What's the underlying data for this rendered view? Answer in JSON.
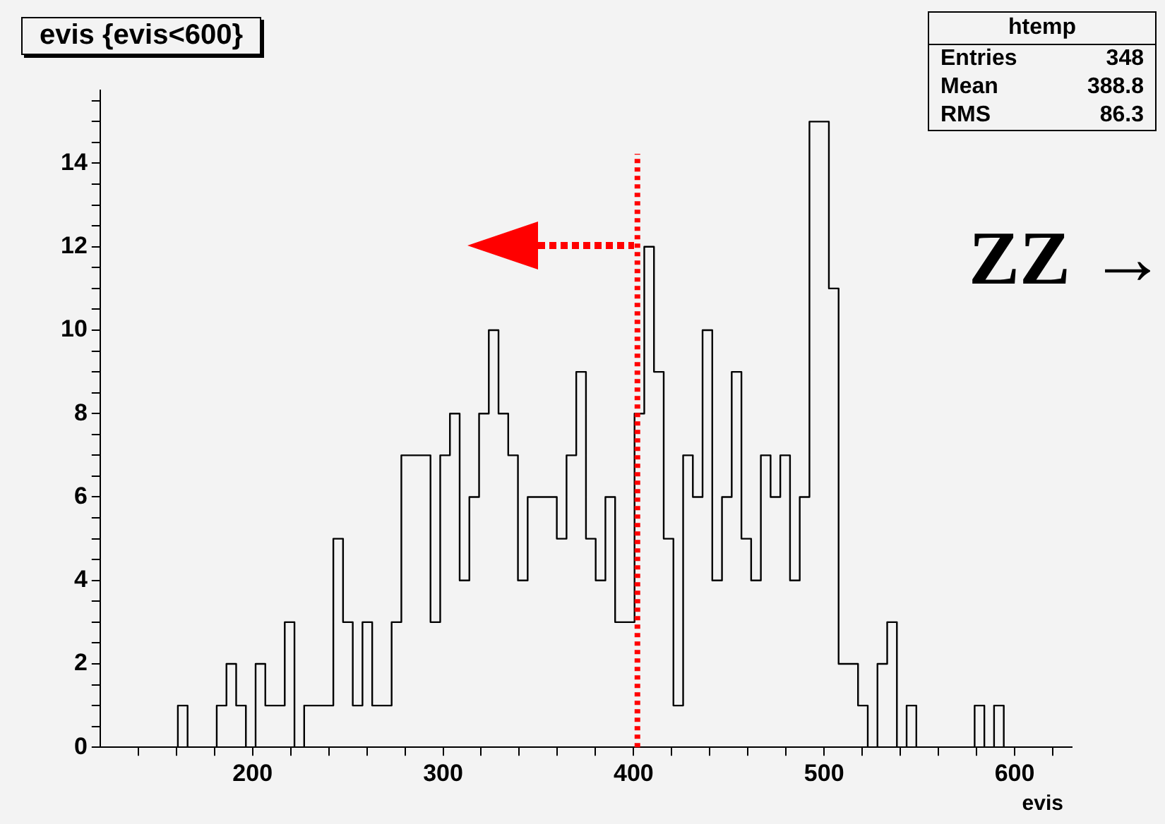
{
  "chart_data": {
    "type": "histogram",
    "title": "evis {evis<600}",
    "xlabel": "evis",
    "bins": [
      120,
      125.1,
      130.2,
      135.3,
      140.4,
      145.5,
      150.6,
      155.7,
      160.8,
      165.9,
      171,
      176.1,
      181.2,
      186.3,
      191.4,
      196.5,
      201.6,
      206.7,
      211.8,
      216.9,
      222,
      227.1,
      232.2,
      237.3,
      242.4,
      247.5,
      252.6,
      257.7,
      262.8,
      267.9,
      273,
      278.1,
      283.2,
      288.3,
      293.4,
      298.5,
      303.6,
      308.7,
      313.8,
      318.9,
      324,
      329.1,
      334.2,
      339.3,
      344.4,
      349.5,
      354.6,
      359.7,
      364.8,
      369.9,
      375,
      380.1,
      385.2,
      390.3,
      395.4,
      400.5,
      405.6,
      410.7,
      415.8,
      420.9,
      426,
      431.1,
      436.2,
      441.3,
      446.4,
      451.5,
      456.6,
      461.7,
      466.8,
      471.9,
      477,
      482.1,
      487.2,
      492.3,
      497.4,
      502.5,
      507.6,
      512.7,
      517.8,
      522.9,
      528,
      533.1,
      538.2,
      543.3,
      548.4,
      553.5,
      558.6,
      563.7,
      568.8,
      573.9,
      579,
      584.1,
      589.2,
      594.3,
      599.4,
      604.5,
      609.6,
      614.7,
      619.8,
      624.9,
      630
    ],
    "values": [
      0,
      0,
      0,
      0,
      0,
      0,
      0,
      0,
      1,
      0,
      0,
      0,
      1,
      2,
      1,
      0,
      2,
      1,
      1,
      3,
      0,
      1,
      1,
      1,
      5,
      3,
      1,
      3,
      1,
      1,
      3,
      7,
      7,
      7,
      3,
      7,
      8,
      4,
      6,
      8,
      10,
      8,
      7,
      4,
      6,
      6,
      6,
      5,
      7,
      9,
      5,
      4,
      6,
      3,
      3,
      8,
      12,
      9,
      5,
      1,
      7,
      6,
      10,
      4,
      6,
      9,
      5,
      4,
      7,
      6,
      7,
      4,
      6,
      15,
      15,
      11,
      2,
      2,
      1,
      0,
      2,
      3,
      0,
      1,
      0,
      0,
      0,
      0,
      0,
      0,
      1,
      0,
      1,
      0,
      0,
      0,
      0,
      0,
      0,
      0
    ],
    "color": "#000000",
    "xlim": [
      120,
      630
    ],
    "xticks": [
      {
        "value": 140,
        "label": null
      },
      {
        "value": 160,
        "label": null
      },
      {
        "value": 180,
        "label": null
      },
      200,
      {
        "value": 220,
        "label": null
      },
      {
        "value": 240,
        "label": null
      },
      {
        "value": 260,
        "label": null
      },
      {
        "value": 280,
        "label": null
      },
      300,
      {
        "value": 320,
        "label": null
      },
      {
        "value": 340,
        "label": null
      },
      {
        "value": 360,
        "label": null
      },
      {
        "value": 380,
        "label": null
      },
      400,
      {
        "value": 420,
        "label": null
      },
      {
        "value": 440,
        "label": null
      },
      {
        "value": 460,
        "label": null
      },
      {
        "value": 480,
        "label": null
      },
      500,
      {
        "value": 520,
        "label": null
      },
      {
        "value": 540,
        "label": null
      },
      {
        "value": 560,
        "label": null
      },
      {
        "value": 580,
        "label": null
      },
      600,
      {
        "value": 620,
        "label": null
      }
    ],
    "ylim": [
      0,
      15.75
    ],
    "yticks": [
      0,
      {
        "value": 0.5,
        "label": null
      },
      {
        "value": 1,
        "label": null
      },
      {
        "value": 1.5,
        "label": null
      },
      2,
      {
        "value": 2.5,
        "label": null
      },
      {
        "value": 3,
        "label": null
      },
      {
        "value": 3.5,
        "label": null
      },
      4,
      {
        "value": 4.5,
        "label": null
      },
      {
        "value": 5,
        "label": null
      },
      {
        "value": 5.5,
        "label": null
      },
      6,
      {
        "value": 6.5,
        "label": null
      },
      {
        "value": 7,
        "label": null
      },
      {
        "value": 7.5,
        "label": null
      },
      8,
      {
        "value": 8.5,
        "label": null
      },
      {
        "value": 9,
        "label": null
      },
      {
        "value": 9.5,
        "label": null
      },
      10,
      {
        "value": 10.5,
        "label": null
      },
      {
        "value": 11,
        "label": null
      },
      {
        "value": 11.5,
        "label": null
      },
      12,
      {
        "value": 12.5,
        "label": null
      },
      {
        "value": 13,
        "label": null
      },
      {
        "value": 13.5,
        "label": null
      },
      14,
      {
        "value": 14.5,
        "label": null
      },
      {
        "value": 15,
        "label": null
      },
      {
        "value": 15.5,
        "label": null
      }
    ],
    "grid": false,
    "legend": false,
    "ref_lines": [
      {
        "axis": "x",
        "value": 402,
        "color": "#ff0000",
        "line_style": "dotted"
      }
    ],
    "annotations": [
      "htemp",
      "Entries 348",
      "Mean 388.8",
      "RMS 86.3",
      "ZZ →"
    ]
  }
}
